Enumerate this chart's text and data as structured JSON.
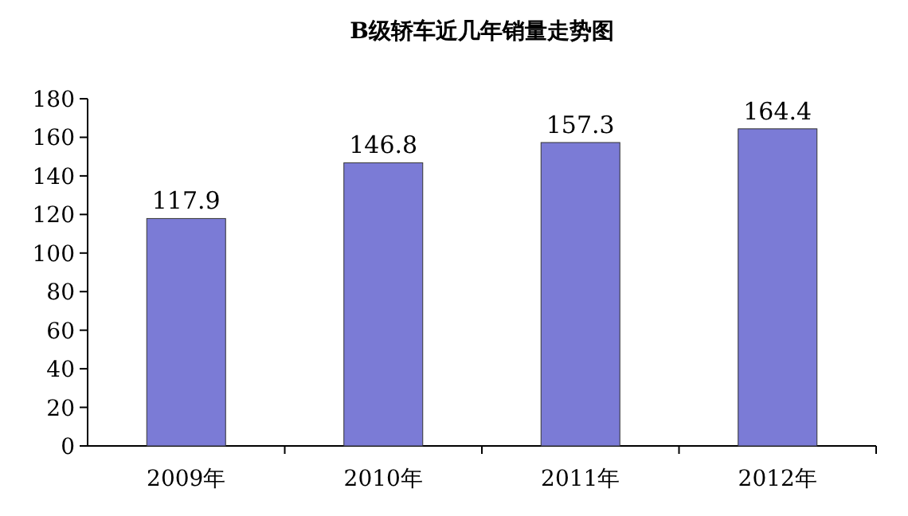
{
  "chart_data": {
    "type": "bar",
    "title": "B级轿车近几年销量走势图",
    "categories": [
      "2009年",
      "2010年",
      "2011年",
      "2012年"
    ],
    "values": [
      117.9,
      146.8,
      157.3,
      164.4
    ],
    "color": "#7b7bd6",
    "ylim": [
      0,
      180
    ],
    "yticks": [
      0,
      20,
      40,
      60,
      80,
      100,
      120,
      140,
      160,
      180
    ],
    "data_labels": true,
    "grid": false
  }
}
